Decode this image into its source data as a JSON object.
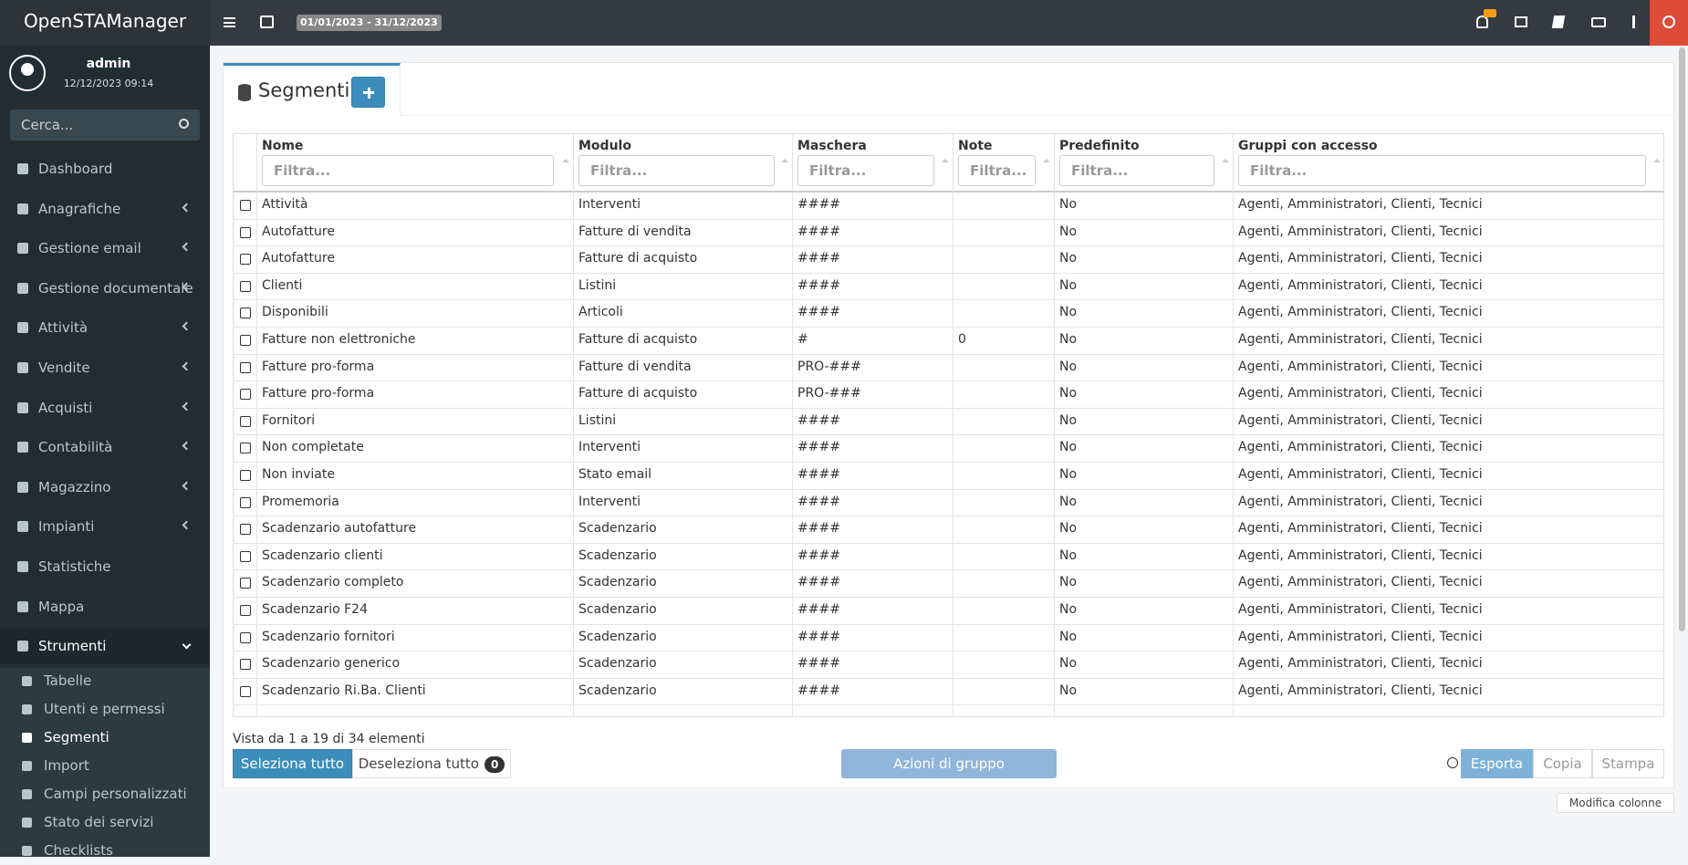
{
  "header": {
    "brand": "OpenSTAManager",
    "date_range": "01/01/2023 - 31/12/2023"
  },
  "user": {
    "name": "admin",
    "datetime": "12/12/2023 09:14"
  },
  "sidebar": {
    "search_placeholder": "Cerca...",
    "menu": [
      "Dashboard",
      "Anagrafiche",
      "Gestione email",
      "Gestione documentale",
      "Attività",
      "Vendite",
      "Acquisti",
      "Contabilità",
      "Magazzino",
      "Impianti",
      "Statistiche",
      "Mappa",
      "Strumenti"
    ],
    "submenu": [
      "Tabelle",
      "Utenti e permessi",
      "Segmenti",
      "Import",
      "Campi personalizzati",
      "Stato dei servizi",
      "Checklists"
    ]
  },
  "page": {
    "title": "Segmenti"
  },
  "table": {
    "columns": [
      {
        "label": "Nome",
        "filter": "Filtra..."
      },
      {
        "label": "Modulo",
        "filter": "Filtra..."
      },
      {
        "label": "Maschera",
        "filter": "Filtra..."
      },
      {
        "label": "Note",
        "filter": "Filtra..."
      },
      {
        "label": "Predefinito",
        "filter": "Filtra..."
      },
      {
        "label": "Gruppi con accesso",
        "filter": "Filtra..."
      }
    ],
    "rows": [
      [
        "Attività",
        "Interventi",
        "####",
        "",
        "No",
        "Agenti, Amministratori, Clienti, Tecnici"
      ],
      [
        "Autofatture",
        "Fatture di vendita",
        "####",
        "",
        "No",
        "Agenti, Amministratori, Clienti, Tecnici"
      ],
      [
        "Autofatture",
        "Fatture di acquisto",
        "####",
        "",
        "No",
        "Agenti, Amministratori, Clienti, Tecnici"
      ],
      [
        "Clienti",
        "Listini",
        "####",
        "",
        "No",
        "Agenti, Amministratori, Clienti, Tecnici"
      ],
      [
        "Disponibili",
        "Articoli",
        "####",
        "",
        "No",
        "Agenti, Amministratori, Clienti, Tecnici"
      ],
      [
        "Fatture non elettroniche",
        "Fatture di acquisto",
        "#",
        "0",
        "No",
        "Agenti, Amministratori, Clienti, Tecnici"
      ],
      [
        "Fatture pro-forma",
        "Fatture di vendita",
        "PRO-###",
        "",
        "No",
        "Agenti, Amministratori, Clienti, Tecnici"
      ],
      [
        "Fatture pro-forma",
        "Fatture di acquisto",
        "PRO-###",
        "",
        "No",
        "Agenti, Amministratori, Clienti, Tecnici"
      ],
      [
        "Fornitori",
        "Listini",
        "####",
        "",
        "No",
        "Agenti, Amministratori, Clienti, Tecnici"
      ],
      [
        "Non completate",
        "Interventi",
        "####",
        "",
        "No",
        "Agenti, Amministratori, Clienti, Tecnici"
      ],
      [
        "Non inviate",
        "Stato email",
        "####",
        "",
        "No",
        "Agenti, Amministratori, Clienti, Tecnici"
      ],
      [
        "Promemoria",
        "Interventi",
        "####",
        "",
        "No",
        "Agenti, Amministratori, Clienti, Tecnici"
      ],
      [
        "Scadenzario autofatture",
        "Scadenzario",
        "####",
        "",
        "No",
        "Agenti, Amministratori, Clienti, Tecnici"
      ],
      [
        "Scadenzario clienti",
        "Scadenzario",
        "####",
        "",
        "No",
        "Agenti, Amministratori, Clienti, Tecnici"
      ],
      [
        "Scadenzario completo",
        "Scadenzario",
        "####",
        "",
        "No",
        "Agenti, Amministratori, Clienti, Tecnici"
      ],
      [
        "Scadenzario F24",
        "Scadenzario",
        "####",
        "",
        "No",
        "Agenti, Amministratori, Clienti, Tecnici"
      ],
      [
        "Scadenzario fornitori",
        "Scadenzario",
        "####",
        "",
        "No",
        "Agenti, Amministratori, Clienti, Tecnici"
      ],
      [
        "Scadenzario generico",
        "Scadenzario",
        "####",
        "",
        "No",
        "Agenti, Amministratori, Clienti, Tecnici"
      ],
      [
        "Scadenzario Ri.Ba. Clienti",
        "Scadenzario",
        "####",
        "",
        "No",
        "Agenti, Amministratori, Clienti, Tecnici"
      ]
    ]
  },
  "footer": {
    "info": "Vista da 1 a 19 di 34 elementi",
    "select_all": "Seleziona tutto",
    "deselect_all": "Deseleziona tutto",
    "deselect_count": 0,
    "group_actions": "Azioni di gruppo",
    "export": "Esporta",
    "copy": "Copia",
    "print": "Stampa",
    "edit_columns": "Modifica colonne"
  }
}
